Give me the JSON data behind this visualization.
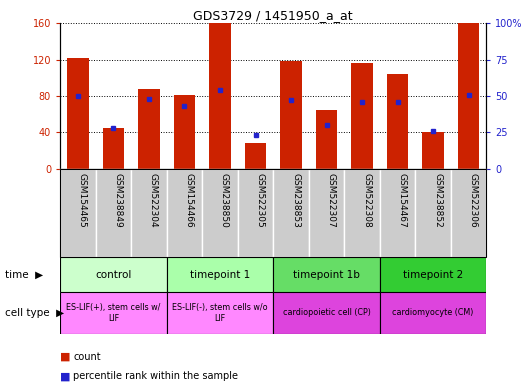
{
  "title": "GDS3729 / 1451950_a_at",
  "samples": [
    "GSM154465",
    "GSM238849",
    "GSM522304",
    "GSM154466",
    "GSM238850",
    "GSM522305",
    "GSM238853",
    "GSM522307",
    "GSM522308",
    "GSM154467",
    "GSM238852",
    "GSM522306"
  ],
  "counts": [
    122,
    45,
    88,
    81,
    160,
    28,
    118,
    65,
    116,
    104,
    40,
    160
  ],
  "percentiles": [
    50,
    28,
    48,
    43,
    54,
    23,
    47,
    30,
    46,
    46,
    26,
    51
  ],
  "groups": [
    {
      "label": "control",
      "start": 0,
      "end": 3,
      "color": "#ccffcc"
    },
    {
      "label": "timepoint 1",
      "start": 3,
      "end": 6,
      "color": "#aaffaa"
    },
    {
      "label": "timepoint 1b",
      "start": 6,
      "end": 9,
      "color": "#66dd66"
    },
    {
      "label": "timepoint 2",
      "start": 9,
      "end": 12,
      "color": "#33cc33"
    }
  ],
  "cell_types": [
    {
      "label": "ES-LIF(+), stem cells w/\nLIF",
      "start": 0,
      "end": 3,
      "color": "#ff88ff"
    },
    {
      "label": "ES-LIF(-), stem cells w/o\nLIF",
      "start": 3,
      "end": 6,
      "color": "#ff88ff"
    },
    {
      "label": "cardiopoietic cell (CP)",
      "start": 6,
      "end": 9,
      "color": "#dd44dd"
    },
    {
      "label": "cardiomyocyte (CM)",
      "start": 9,
      "end": 12,
      "color": "#dd44dd"
    }
  ],
  "ylim_left": [
    0,
    160
  ],
  "ylim_right": [
    0,
    100
  ],
  "yticks_left": [
    0,
    40,
    80,
    120,
    160
  ],
  "yticks_right": [
    0,
    25,
    50,
    75,
    100
  ],
  "bar_color": "#cc2200",
  "dot_color": "#2222cc",
  "bg_color": "#ffffff",
  "sample_bg_color": "#cccccc",
  "tick_label_fontsize": 6.5,
  "axis_label_color_left": "#cc2200",
  "axis_label_color_right": "#2222cc"
}
